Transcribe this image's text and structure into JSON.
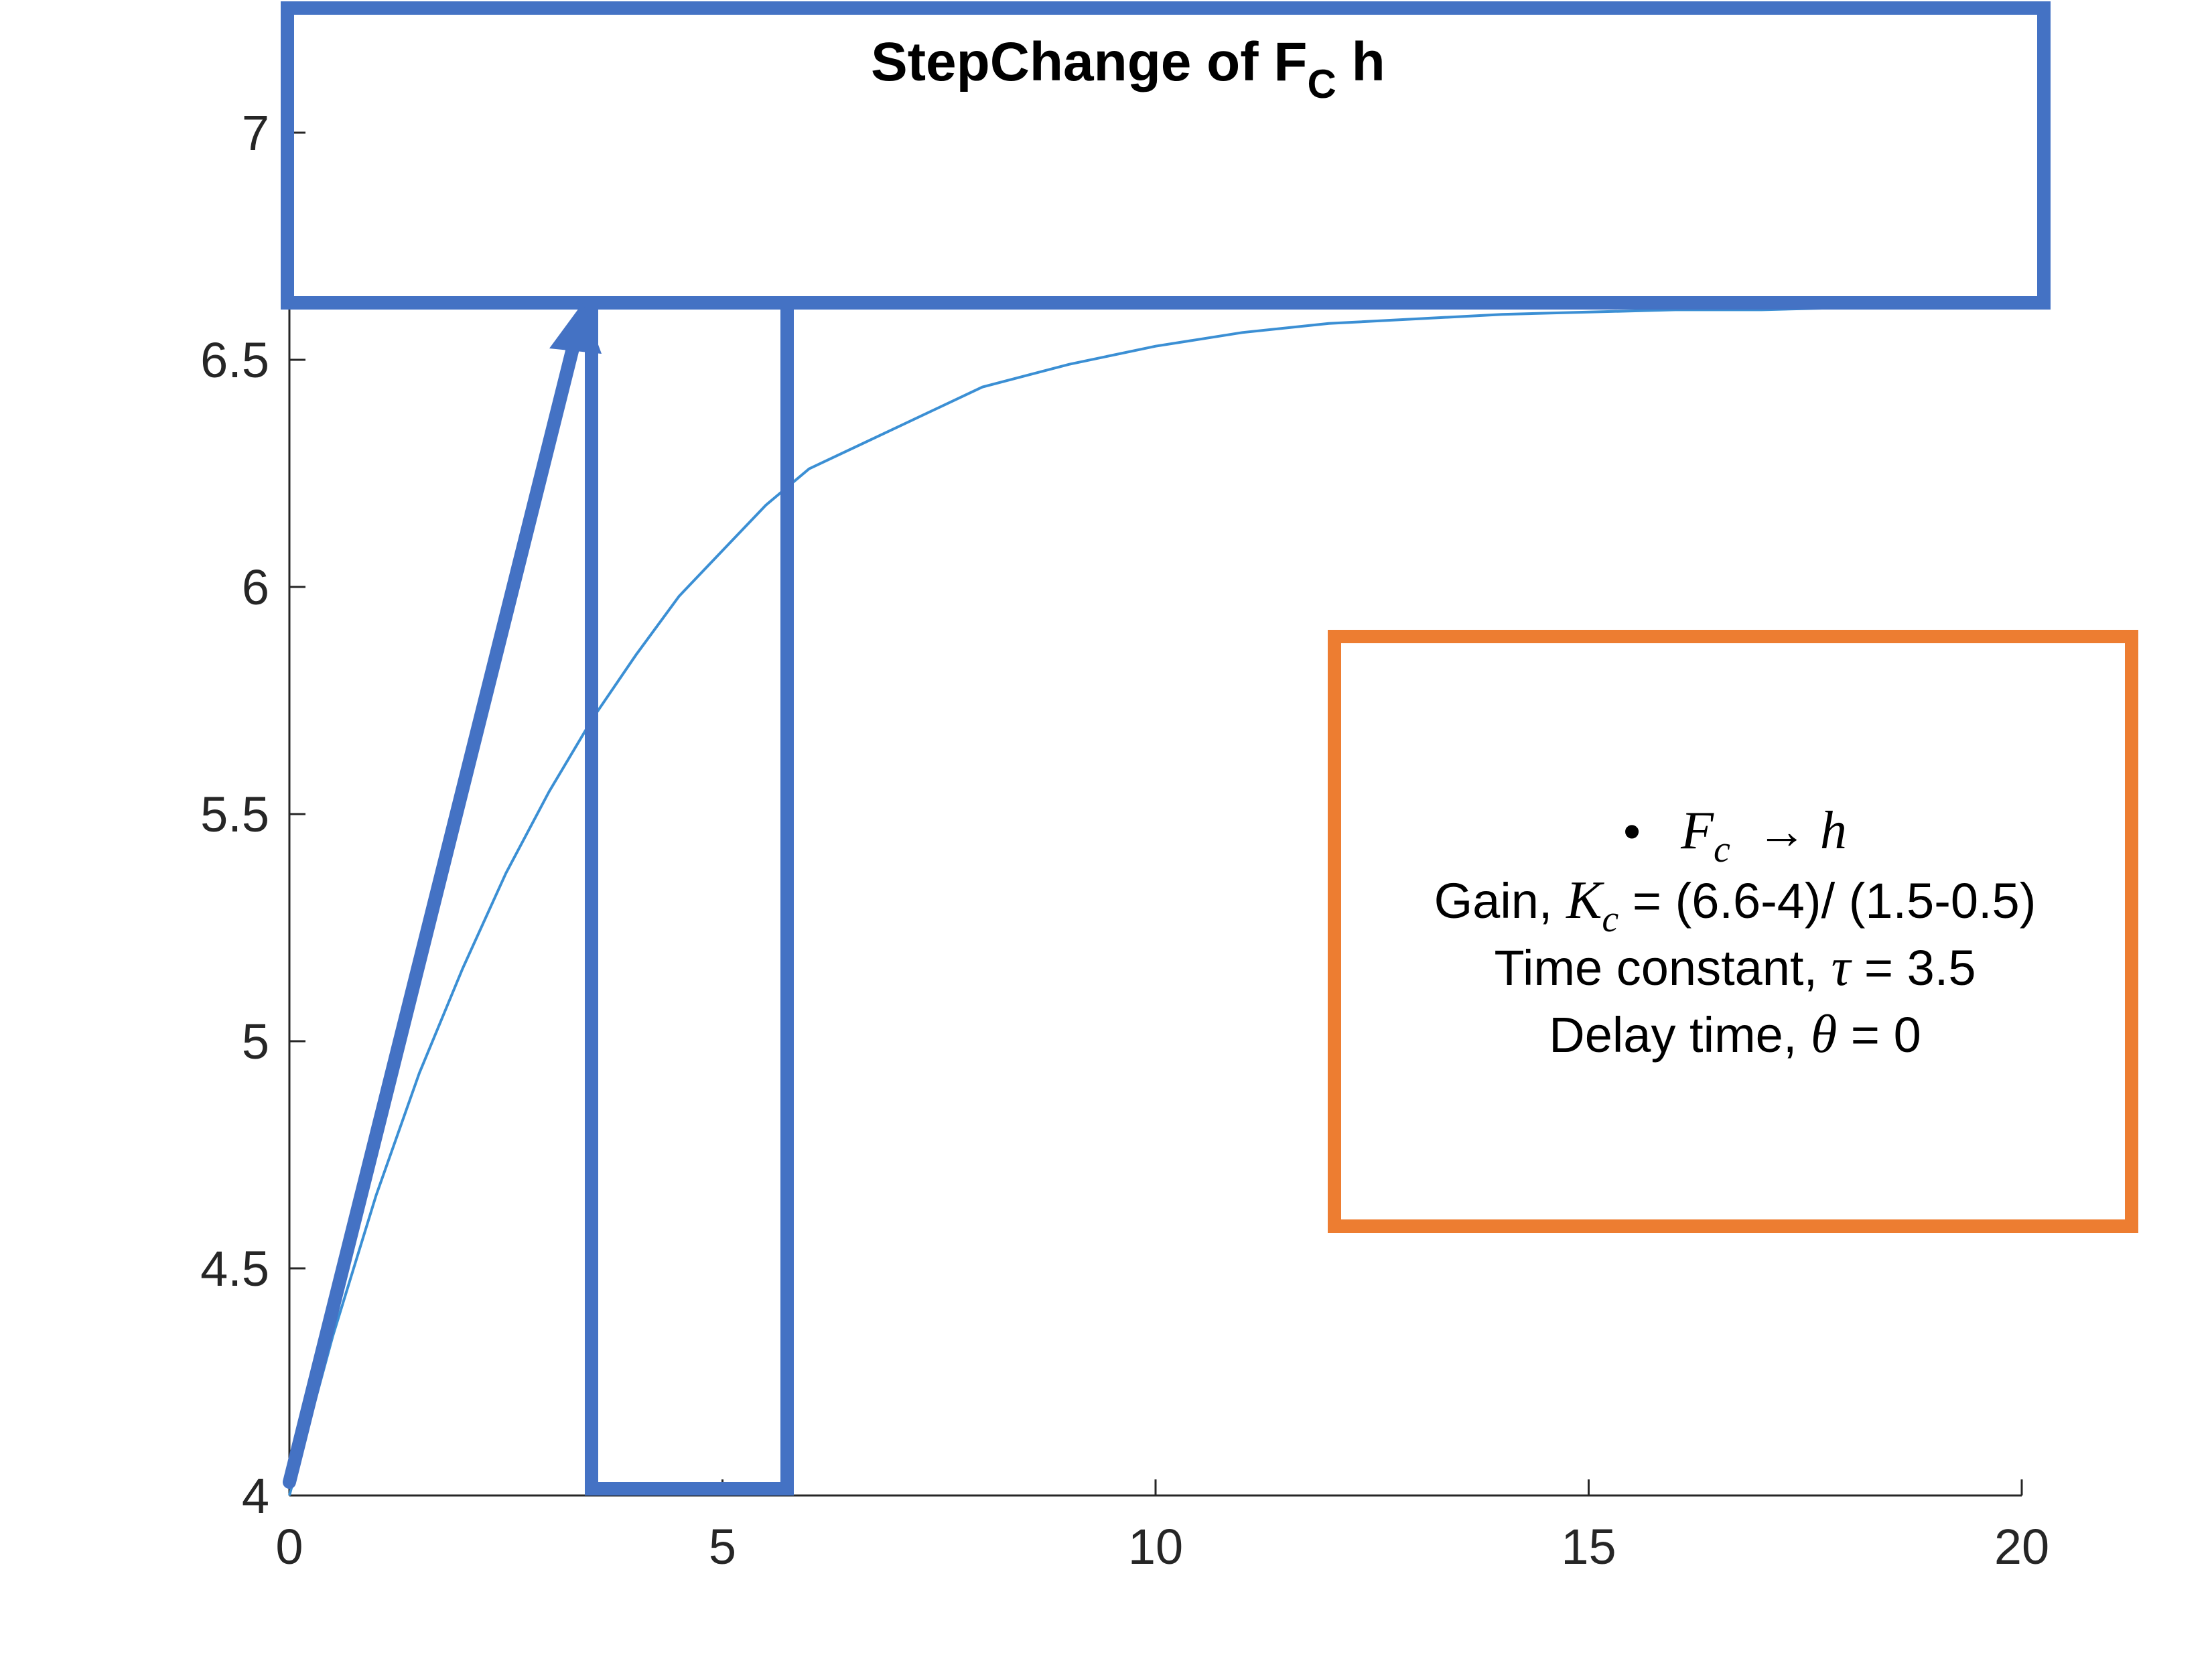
{
  "chart_data": {
    "type": "line",
    "title": "StepChange of F",
    "title_subscript": "C",
    "title_suffix": " h",
    "xlabel": "",
    "ylabel": "",
    "xlim": [
      0,
      20
    ],
    "ylim": [
      4,
      7.3
    ],
    "xticks": [
      0,
      5,
      10,
      15,
      20
    ],
    "xtick_labels": [
      "0",
      "5",
      "10",
      "15",
      "20"
    ],
    "yticks": [
      4,
      4.5,
      5,
      5.5,
      6,
      6.5,
      7
    ],
    "ytick_labels": [
      "4",
      "4.5",
      "5",
      "5.5",
      "6",
      "6.5",
      "7"
    ],
    "grid": false,
    "series": [
      {
        "color": "#3b8fd4",
        "x": [
          0,
          0.5,
          1,
          1.5,
          2,
          2.5,
          3,
          3.5,
          4,
          4.5,
          5,
          5.5,
          6,
          7,
          8,
          9,
          10,
          11,
          12,
          13,
          14,
          15,
          16,
          17,
          18,
          19,
          20
        ],
        "y": [
          4,
          4.35,
          4.66,
          4.93,
          5.16,
          5.37,
          5.55,
          5.71,
          5.85,
          5.98,
          6.08,
          6.18,
          6.26,
          6.35,
          6.44,
          6.49,
          6.53,
          6.56,
          6.58,
          6.59,
          6.6,
          6.605,
          6.61,
          6.61,
          6.615,
          6.62,
          6.62
        ]
      }
    ]
  },
  "annotation": {
    "bullet": "•",
    "line1_var": "F",
    "line1_sub": "c",
    "line1_arrow": "→",
    "line1_target": "h",
    "line2_prefix": "Gain, ",
    "line2_var": "K",
    "line2_sub": "c",
    "line2_suffix": " = (6.6-4)/ (1.5-0.5)",
    "line3_prefix": "Time constant, ",
    "line3_var": "τ",
    "line3_suffix": " = 3.5",
    "line4_prefix": "Delay time, ",
    "line4_var": "θ",
    "line4_suffix": " = 0"
  },
  "colors": {
    "highlight_blue": "#4472c4",
    "highlight_orange": "#ed7d31",
    "axis": "#262626"
  }
}
